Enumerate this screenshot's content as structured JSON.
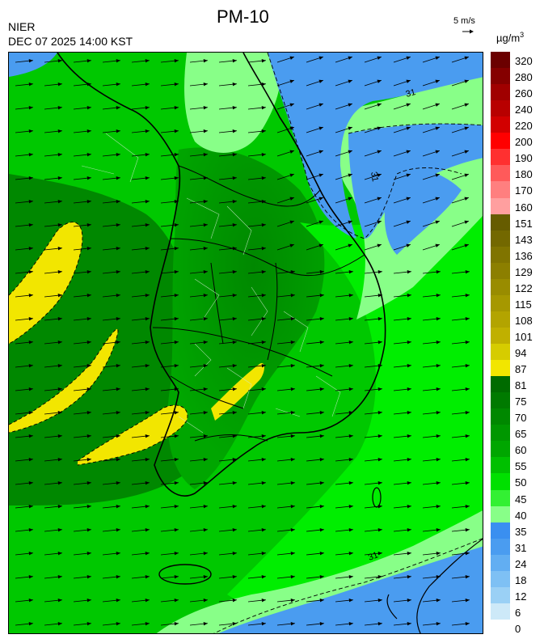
{
  "header": {
    "agency": "NIER",
    "datetime": "DEC 07 2025 14:00 KST",
    "title": "PM-10",
    "wind_reference": "5 m/s",
    "unit_base": "µg/m",
    "unit_exp": "3"
  },
  "contour_labels": [
    "31",
    "31",
    "31"
  ],
  "colorbar": [
    {
      "label": "320",
      "color": "#6b0000"
    },
    {
      "label": "280",
      "color": "#850000"
    },
    {
      "label": "260",
      "color": "#a00000"
    },
    {
      "label": "240",
      "color": "#b80000"
    },
    {
      "label": "220",
      "color": "#d20000"
    },
    {
      "label": "200",
      "color": "#ff0000"
    },
    {
      "label": "190",
      "color": "#ff3030"
    },
    {
      "label": "180",
      "color": "#ff5a5a"
    },
    {
      "label": "170",
      "color": "#ff7f7f"
    },
    {
      "label": "160",
      "color": "#ff9f9f"
    },
    {
      "label": "151",
      "color": "#665c00"
    },
    {
      "label": "143",
      "color": "#736800"
    },
    {
      "label": "136",
      "color": "#807400"
    },
    {
      "label": "129",
      "color": "#8c7f00"
    },
    {
      "label": "122",
      "color": "#998c00"
    },
    {
      "label": "115",
      "color": "#a69800"
    },
    {
      "label": "108",
      "color": "#b3a400"
    },
    {
      "label": "101",
      "color": "#c0b000"
    },
    {
      "label": "94",
      "color": "#d6cc00"
    },
    {
      "label": "87",
      "color": "#f2e600"
    },
    {
      "label": "81",
      "color": "#006b00"
    },
    {
      "label": "75",
      "color": "#007a00"
    },
    {
      "label": "70",
      "color": "#008800"
    },
    {
      "label": "65",
      "color": "#009700"
    },
    {
      "label": "60",
      "color": "#00a600"
    },
    {
      "label": "55",
      "color": "#00c000"
    },
    {
      "label": "50",
      "color": "#00e000"
    },
    {
      "label": "45",
      "color": "#33f033"
    },
    {
      "label": "40",
      "color": "#88ff88"
    },
    {
      "label": "35",
      "color": "#3a8ff0"
    },
    {
      "label": "31",
      "color": "#4a9cf0"
    },
    {
      "label": "24",
      "color": "#62aef2"
    },
    {
      "label": "18",
      "color": "#7ec0f4"
    },
    {
      "label": "12",
      "color": "#9ad0f5"
    },
    {
      "label": "6",
      "color": ""
    },
    {
      "label": "0",
      "color": ""
    }
  ],
  "map_colors": {
    "background_green": "#00c800",
    "dark_green": "#008800",
    "mid_green": "#00a000",
    "light_green": "#88ff88",
    "bright_green": "#00ee00",
    "yellow": "#f2e600",
    "blue": "#4a9cf0",
    "light_blue": "#7ec0f4"
  }
}
